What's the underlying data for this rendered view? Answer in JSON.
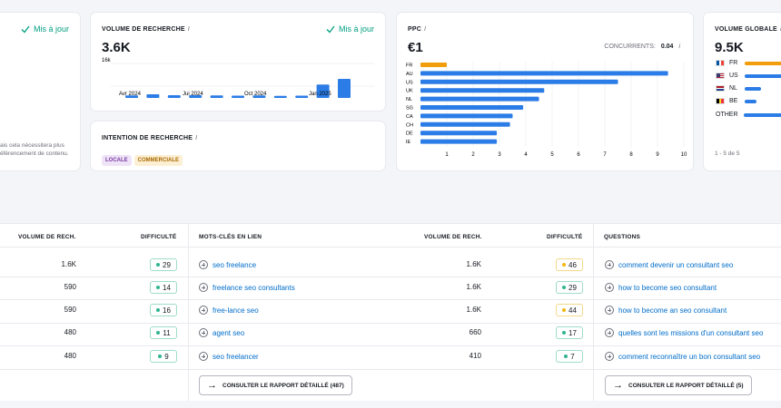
{
  "card_left": {
    "status": "Mis à jour",
    "note_line1": "ais cela nécessitera plus",
    "note_line2": "éférencement de contenu."
  },
  "search_volume": {
    "title": "Volume de recherche",
    "info": "i",
    "status": "Mis à jour",
    "value": "3.6K",
    "ymax_label": "16k",
    "x_labels": [
      "Avr 2024",
      "Jui 2024",
      "Oct 2024",
      "Jan 2025"
    ],
    "bar_color": "#2b7ce6"
  },
  "intent": {
    "title": "Intention de recherche",
    "info": "i",
    "tags": [
      {
        "label": "LOCALE",
        "bg": "#efe3f7",
        "fg": "#7a3da4"
      },
      {
        "label": "COMMERCIALE",
        "bg": "#fdefd4",
        "fg": "#a86a00"
      }
    ]
  },
  "ppc": {
    "title": "PPC",
    "info": "i",
    "value": "€1",
    "competitors_label": "CONCURRENTS:",
    "competitors_value": "0.04",
    "competitors_info": "i"
  },
  "global_volume": {
    "title": "Volume globale",
    "info": "i",
    "value": "9.5K",
    "countries": [
      {
        "code": "FR",
        "flag": "fr-flag-icon",
        "share": 1.0,
        "color": "#f29d0c"
      },
      {
        "code": "US",
        "flag": "us-flag-icon",
        "share": 0.78,
        "color": "#2b7ce6"
      },
      {
        "code": "NL",
        "flag": "nl-flag-icon",
        "share": 0.22,
        "color": "#2b7ce6"
      },
      {
        "code": "BE",
        "flag": "be-flag-icon",
        "share": 0.16,
        "color": "#2b7ce6"
      },
      {
        "code": "OTHER",
        "flag": "",
        "share": 0.82,
        "color": "#2b7ce6"
      }
    ],
    "pagination": "1 - 5 de 5"
  },
  "chart_data": [
    {
      "type": "bar",
      "title": "Volume de recherche",
      "x_labels": [
        "Avr 2024",
        "Jui 2024",
        "Oct 2024",
        "Jan 2025"
      ],
      "values": [
        1300,
        1900,
        1400,
        1400,
        1300,
        1200,
        1300,
        1100,
        1200,
        7000,
        10000
      ],
      "ylim": [
        0,
        16000
      ],
      "ytick_label": "16k"
    },
    {
      "type": "bar",
      "orientation": "horizontal",
      "title": "PPC",
      "categories": [
        "FR",
        "AU",
        "US",
        "UK",
        "NL",
        "SG",
        "CA",
        "CH",
        "DE",
        "IE"
      ],
      "values": [
        1.0,
        9.4,
        7.5,
        4.7,
        4.5,
        3.9,
        3.5,
        3.4,
        2.9,
        2.9
      ],
      "highlight": "FR",
      "highlight_color": "#f29d0c",
      "bar_color": "#2b7ce6",
      "xticks": [
        1,
        2,
        3,
        4,
        5,
        6,
        7,
        8,
        9,
        10
      ],
      "xlim": [
        0,
        10
      ]
    }
  ],
  "table1": {
    "headers": {
      "volume": "Volume de rech.",
      "difficulty": "Difficulté"
    },
    "rows": [
      {
        "volume": "1.6K",
        "kd": "29",
        "level": "green"
      },
      {
        "volume": "590",
        "kd": "14",
        "level": "green"
      },
      {
        "volume": "590",
        "kd": "16",
        "level": "green"
      },
      {
        "volume": "480",
        "kd": "11",
        "level": "green"
      },
      {
        "volume": "480",
        "kd": "9",
        "level": "green"
      }
    ]
  },
  "table2": {
    "headers": {
      "keywords": "Mots-clés en lien",
      "volume": "Volume de rech.",
      "difficulty": "Difficulté"
    },
    "rows": [
      {
        "keyword": "seo freelance",
        "volume": "1.6K",
        "kd": "46",
        "level": "yellow"
      },
      {
        "keyword": "freelance seo consultants",
        "volume": "1.6K",
        "kd": "29",
        "level": "green"
      },
      {
        "keyword": "free-lance seo",
        "volume": "1.6K",
        "kd": "44",
        "level": "yellow"
      },
      {
        "keyword": "agent seo",
        "volume": "660",
        "kd": "17",
        "level": "green"
      },
      {
        "keyword": "seo freelancer",
        "volume": "410",
        "kd": "7",
        "level": "green"
      }
    ],
    "button": "Consulter le rapport détaillé (487)"
  },
  "table3": {
    "headers": {
      "questions": "Questions"
    },
    "rows": [
      "comment devenir un consultant seo",
      "how to become seo consultant",
      "how to become an seo consultant",
      "quelles sont les missions d'un consultant seo",
      "comment reconnaître un bon consultant seo"
    ],
    "button": "Consulter le rapport détaillé (5)"
  }
}
